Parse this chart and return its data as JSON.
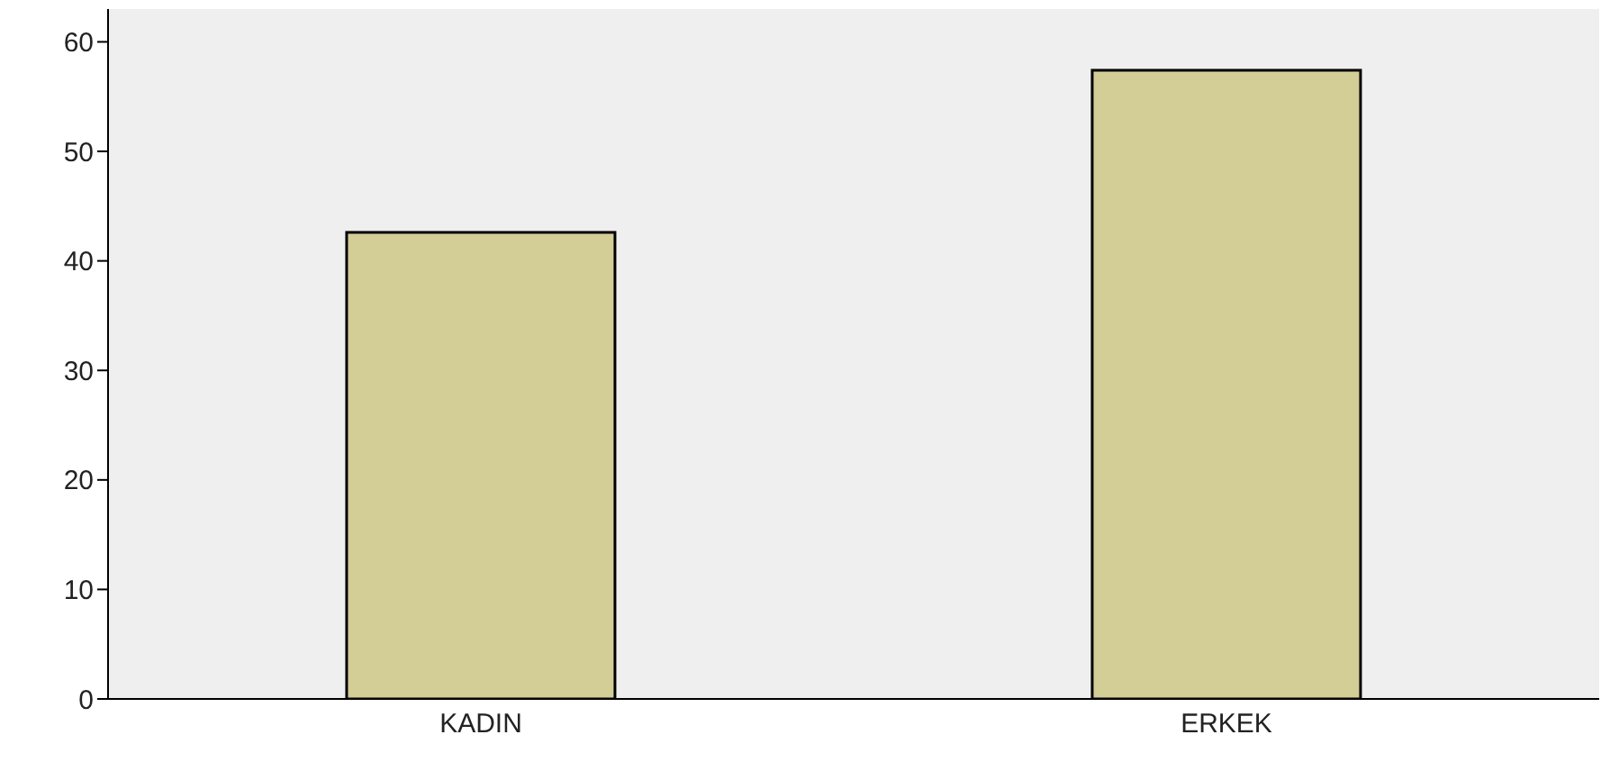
{
  "chart_data": {
    "type": "bar",
    "categories": [
      "KADIN",
      "ERKEK"
    ],
    "values": [
      42.6,
      57.4
    ],
    "color": "#d3cd96",
    "ylim": [
      0,
      63
    ],
    "yticks": [
      0,
      10,
      20,
      30,
      40,
      50,
      60
    ],
    "grid": false
  }
}
